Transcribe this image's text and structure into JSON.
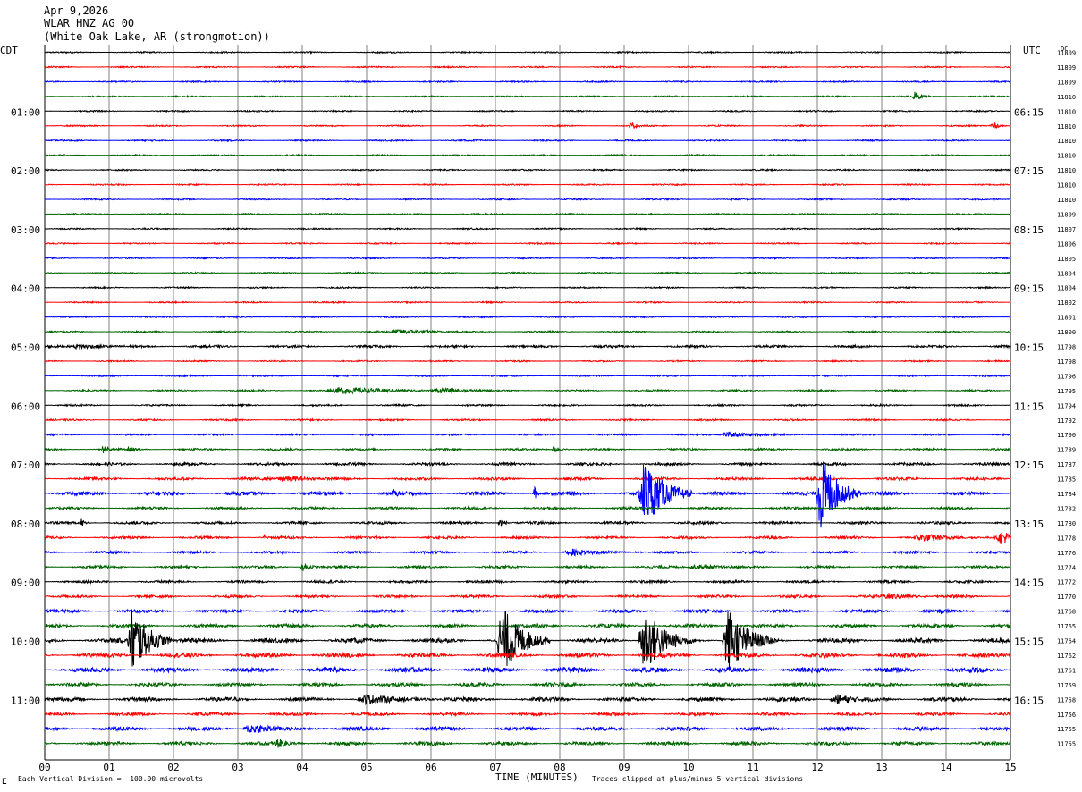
{
  "header": {
    "date": "Apr 9,2026",
    "station": "WLAR HNZ AG 00",
    "location": "(White Oak Lake, AR (strongmotion))"
  },
  "left_axis_label": "CDT",
  "right_axis_label": "UTC",
  "dc_label": "DC",
  "footer": {
    "division_note": "Each Vertical Division =  100.00 microvolts",
    "clip_note": "Traces clipped at plus/minus 5 vertical divisions",
    "xlabel": "TIME (MINUTES)",
    "logo_mark": "ⵎ"
  },
  "colors": {
    "trace_cycle": [
      "#000000",
      "#ff0000",
      "#0000ff",
      "#006400"
    ],
    "grid": "#808080"
  },
  "chart_data": {
    "type": "line",
    "title": "Apr 9,2026 WLAR HNZ AG 00 (White Oak Lake, AR (strongmotion))",
    "xlabel": "TIME (MINUTES)",
    "xlim": [
      0,
      15
    ],
    "x_ticks": [
      "00",
      "01",
      "02",
      "03",
      "04",
      "05",
      "06",
      "07",
      "08",
      "09",
      "10",
      "11",
      "12",
      "13",
      "14",
      "15"
    ],
    "rows_per_hour": 4,
    "minutes_per_row": 15,
    "left_time_labels": [
      {
        "row": 4,
        "text": "01:00"
      },
      {
        "row": 8,
        "text": "02:00"
      },
      {
        "row": 12,
        "text": "03:00"
      },
      {
        "row": 16,
        "text": "04:00"
      },
      {
        "row": 20,
        "text": "05:00"
      },
      {
        "row": 24,
        "text": "06:00"
      },
      {
        "row": 28,
        "text": "07:00"
      },
      {
        "row": 32,
        "text": "08:00"
      },
      {
        "row": 36,
        "text": "09:00"
      },
      {
        "row": 40,
        "text": "10:00"
      },
      {
        "row": 44,
        "text": "11:00"
      }
    ],
    "right_time_labels": [
      {
        "row": 4,
        "text": "06:15"
      },
      {
        "row": 8,
        "text": "07:15"
      },
      {
        "row": 12,
        "text": "08:15"
      },
      {
        "row": 16,
        "text": "09:15"
      },
      {
        "row": 20,
        "text": "10:15"
      },
      {
        "row": 24,
        "text": "11:15"
      },
      {
        "row": 28,
        "text": "12:15"
      },
      {
        "row": 32,
        "text": "13:15"
      },
      {
        "row": 36,
        "text": "14:15"
      },
      {
        "row": 40,
        "text": "15:15"
      },
      {
        "row": 44,
        "text": "16:15"
      }
    ],
    "dc_offsets": [
      11809,
      11809,
      11809,
      11810,
      11810,
      11810,
      11810,
      11810,
      11810,
      11810,
      11810,
      11809,
      11807,
      11806,
      11805,
      11804,
      11804,
      11802,
      11801,
      11800,
      11798,
      11798,
      11796,
      11795,
      11794,
      11792,
      11790,
      11789,
      11787,
      11785,
      11784,
      11782,
      11780,
      11778,
      11776,
      11774,
      11772,
      11770,
      11768,
      11765,
      11764,
      11762,
      11761,
      11759,
      11758,
      11756,
      11755,
      11755
    ],
    "noise_levels": [
      0.8,
      0.8,
      0.8,
      0.8,
      0.8,
      0.8,
      0.8,
      0.8,
      0.8,
      0.8,
      0.8,
      0.8,
      0.8,
      0.8,
      0.8,
      0.8,
      0.8,
      0.8,
      0.8,
      0.9,
      1.4,
      0.8,
      0.9,
      1.0,
      1.0,
      1.0,
      1.0,
      1.2,
      1.6,
      1.6,
      2.2,
      1.5,
      1.6,
      1.5,
      1.4,
      1.5,
      1.5,
      1.6,
      1.8,
      2.0,
      2.6,
      2.6,
      2.8,
      2.2,
      2.4,
      1.8,
      2.2,
      2.0
    ],
    "events": [
      {
        "row": 3,
        "minute": 13.5,
        "amp": 6,
        "dur": 0.12
      },
      {
        "row": 5,
        "minute": 9.1,
        "amp": 4,
        "dur": 0.12
      },
      {
        "row": 5,
        "minute": 14.7,
        "amp": 5,
        "dur": 0.1
      },
      {
        "row": 19,
        "minute": 5.5,
        "amp": 3,
        "dur": 0.6
      },
      {
        "row": 20,
        "minute": 0.5,
        "amp": 3,
        "dur": 0.6
      },
      {
        "row": 23,
        "minute": 4.6,
        "amp": 4,
        "dur": 0.9
      },
      {
        "row": 23,
        "minute": 6.1,
        "amp": 3,
        "dur": 0.6
      },
      {
        "row": 26,
        "minute": 10.6,
        "amp": 3,
        "dur": 0.6
      },
      {
        "row": 27,
        "minute": 0.9,
        "amp": 5,
        "dur": 0.1
      },
      {
        "row": 27,
        "minute": 1.3,
        "amp": 5,
        "dur": 0.08
      },
      {
        "row": 27,
        "minute": 7.9,
        "amp": 5,
        "dur": 0.1
      },
      {
        "row": 29,
        "minute": 3.7,
        "amp": 4,
        "dur": 0.5
      },
      {
        "row": 30,
        "minute": 5.4,
        "amp": 5,
        "dur": 0.15
      },
      {
        "row": 30,
        "minute": 7.6,
        "amp": 9,
        "dur": 0.05
      },
      {
        "row": 30,
        "minute": 9.3,
        "amp": 40,
        "dur": 0.3
      },
      {
        "row": 30,
        "minute": 12.05,
        "amp": 45,
        "dur": 0.25
      },
      {
        "row": 32,
        "minute": 0.55,
        "amp": 8,
        "dur": 0.05
      },
      {
        "row": 32,
        "minute": 7.05,
        "amp": 5,
        "dur": 0.1
      },
      {
        "row": 33,
        "minute": 3.4,
        "amp": 4,
        "dur": 0.05
      },
      {
        "row": 33,
        "minute": 13.6,
        "amp": 5,
        "dur": 0.5
      },
      {
        "row": 33,
        "minute": 14.85,
        "amp": 8,
        "dur": 0.3
      },
      {
        "row": 34,
        "minute": 8.2,
        "amp": 4,
        "dur": 0.6
      },
      {
        "row": 35,
        "minute": 4.0,
        "amp": 5,
        "dur": 0.15
      },
      {
        "row": 35,
        "minute": 10.1,
        "amp": 3,
        "dur": 0.5
      },
      {
        "row": 37,
        "minute": 13.1,
        "amp": 4,
        "dur": 0.4
      },
      {
        "row": 38,
        "minute": 13.9,
        "amp": 4,
        "dur": 0.2
      },
      {
        "row": 40,
        "minute": 1.35,
        "amp": 40,
        "dur": 0.25
      },
      {
        "row": 40,
        "minute": 7.1,
        "amp": 40,
        "dur": 0.3
      },
      {
        "row": 40,
        "minute": 9.3,
        "amp": 40,
        "dur": 0.3
      },
      {
        "row": 40,
        "minute": 10.6,
        "amp": 40,
        "dur": 0.3
      },
      {
        "row": 44,
        "minute": 5.0,
        "amp": 6,
        "dur": 0.6
      },
      {
        "row": 44,
        "minute": 12.3,
        "amp": 6,
        "dur": 0.4
      },
      {
        "row": 46,
        "minute": 3.2,
        "amp": 6,
        "dur": 0.5
      },
      {
        "row": 47,
        "minute": 3.6,
        "amp": 6,
        "dur": 0.2
      }
    ]
  }
}
